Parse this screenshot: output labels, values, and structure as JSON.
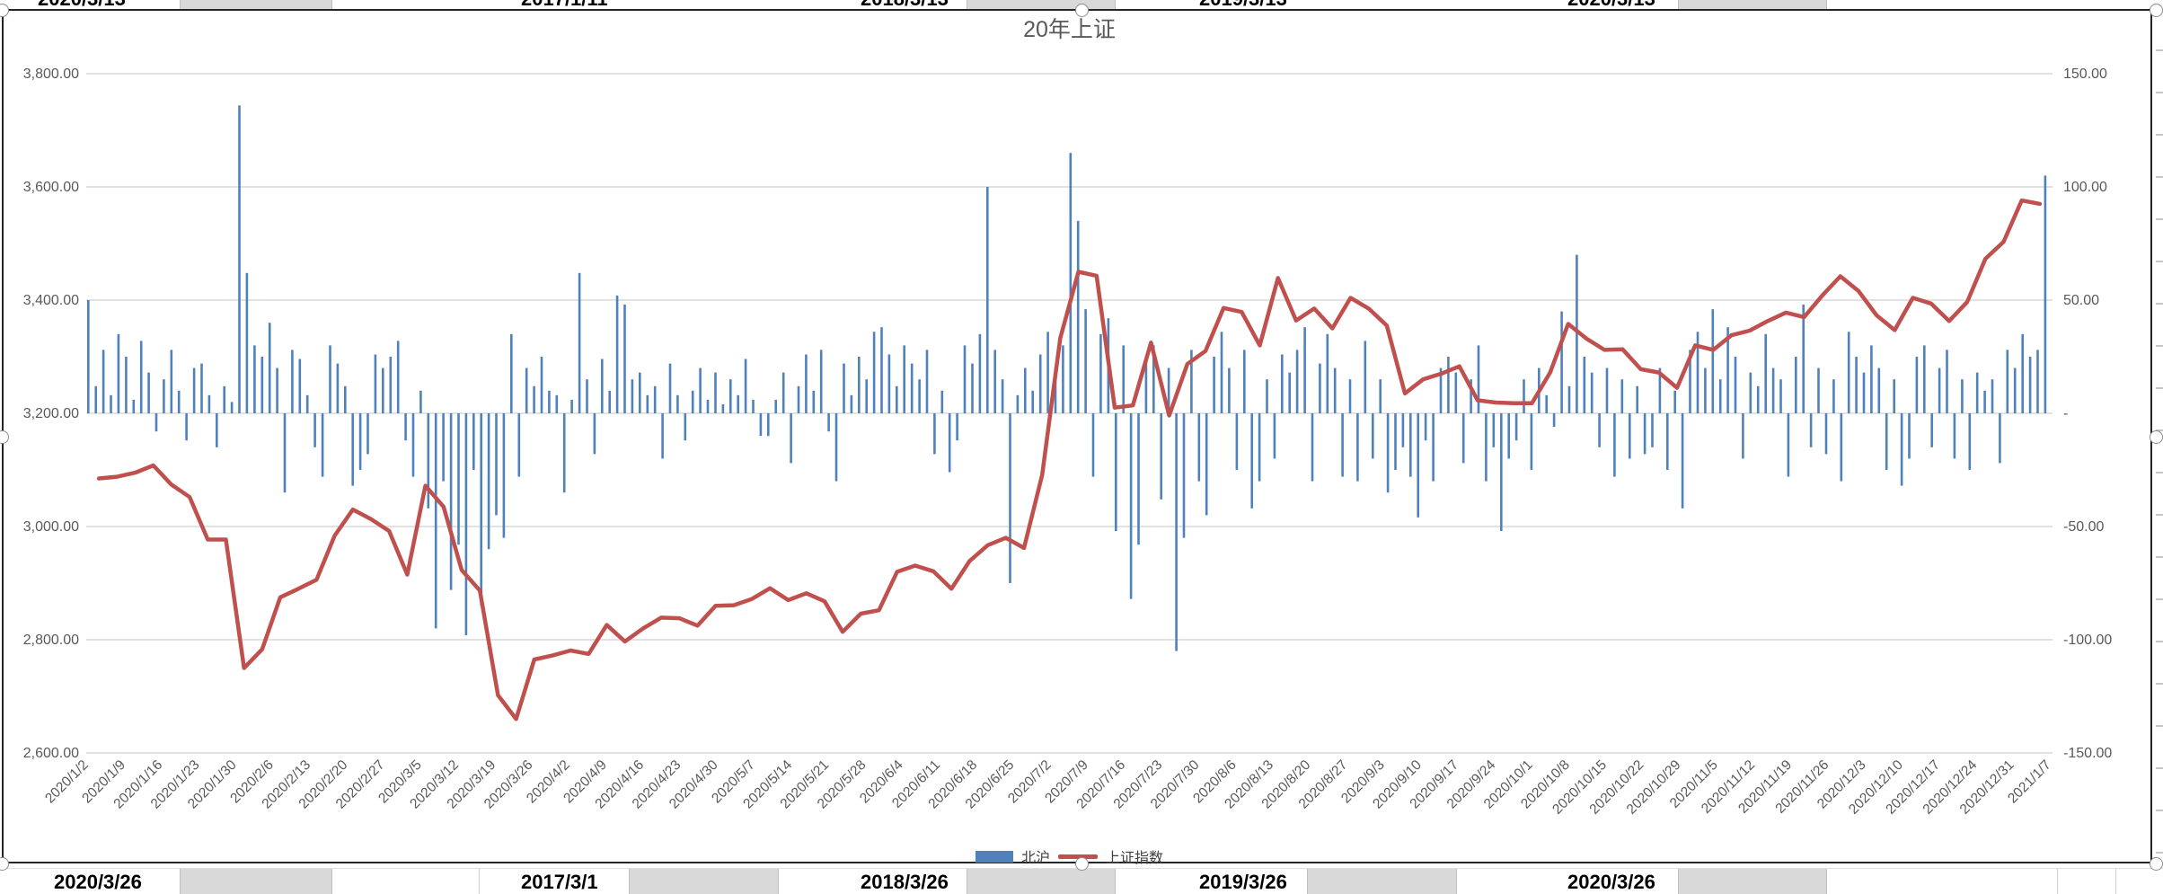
{
  "sheet": {
    "top_row": [
      "2020/3/13",
      "2017/1/11",
      "2018/3/13",
      "2019/3/13",
      "2020/3/13"
    ],
    "bottom_row": [
      "2020/3/26",
      "2017/3/1",
      "2018/3/26",
      "2019/3/26",
      "2020/3/26"
    ]
  },
  "chart_data": {
    "type": "combo-bar-line",
    "title": "20年上证",
    "legend_position": "bottom",
    "grid": true,
    "left_axis": {
      "labels": [
        "3,800.00",
        "3,600.00",
        "3,400.00",
        "3,200.00",
        "3,000.00",
        "2,800.00",
        "2,600.00"
      ],
      "min": 2600,
      "max": 3800,
      "step": 200
    },
    "right_axis": {
      "labels": [
        "150.00",
        "100.00",
        "50.00",
        "-",
        "-50.00",
        "-100.00",
        "-150.00"
      ],
      "min": -150,
      "max": 150,
      "step": 50
    },
    "categories": [
      "2020/1/2",
      "2020/1/9",
      "2020/1/16",
      "2020/1/23",
      "2020/1/30",
      "2020/2/6",
      "2020/2/13",
      "2020/2/20",
      "2020/2/27",
      "2020/3/5",
      "2020/3/12",
      "2020/3/19",
      "2020/3/26",
      "2020/4/2",
      "2020/4/9",
      "2020/4/16",
      "2020/4/23",
      "2020/4/30",
      "2020/5/7",
      "2020/5/14",
      "2020/5/21",
      "2020/5/28",
      "2020/6/4",
      "2020/6/11",
      "2020/6/18",
      "2020/6/25",
      "2020/7/2",
      "2020/7/9",
      "2020/7/16",
      "2020/7/23",
      "2020/7/30",
      "2020/8/6",
      "2020/8/13",
      "2020/8/20",
      "2020/8/27",
      "2020/9/3",
      "2020/9/10",
      "2020/9/17",
      "2020/9/24",
      "2020/10/1",
      "2020/10/8",
      "2020/10/15",
      "2020/10/22",
      "2020/10/29",
      "2020/11/5",
      "2020/11/12",
      "2020/11/19",
      "2020/11/26",
      "2020/12/3",
      "2020/12/10",
      "2020/12/17",
      "2020/12/24",
      "2020/12/31",
      "2021/1/7"
    ],
    "series": [
      {
        "name": "北沪",
        "type": "bar",
        "axis": "right",
        "color": "#4F81BD",
        "note": "daily values, right axis units",
        "values": [
          50,
          12,
          28,
          8,
          35,
          25,
          6,
          32,
          18,
          -8,
          15,
          28,
          10,
          -12,
          20,
          22,
          8,
          -15,
          12,
          5,
          136,
          62,
          30,
          25,
          40,
          20,
          -35,
          28,
          24,
          8,
          -15,
          -28,
          30,
          22,
          12,
          -32,
          -25,
          -18,
          26,
          20,
          25,
          32,
          -12,
          -28,
          10,
          -42,
          -95,
          -30,
          -78,
          -58,
          -98,
          -25,
          -85,
          -60,
          -45,
          -55,
          35,
          -28,
          20,
          12,
          25,
          10,
          8,
          -35,
          6,
          62,
          15,
          -18,
          24,
          10,
          52,
          48,
          15,
          18,
          8,
          12,
          -20,
          22,
          8,
          -12,
          10,
          20,
          6,
          18,
          4,
          15,
          8,
          24,
          6,
          -10,
          -10,
          6,
          18,
          -22,
          12,
          26,
          10,
          28,
          -8,
          -30,
          22,
          8,
          25,
          15,
          36,
          38,
          26,
          12,
          30,
          22,
          15,
          28,
          -18,
          10,
          -26,
          -12,
          30,
          22,
          35,
          100,
          28,
          15,
          -75,
          8,
          20,
          10,
          26,
          36,
          20,
          30,
          115,
          85,
          46,
          -28,
          35,
          42,
          -52,
          30,
          -82,
          -58,
          25,
          30,
          -38,
          20,
          -105,
          -55,
          28,
          -30,
          -45,
          25,
          36,
          20,
          -25,
          28,
          -42,
          -30,
          15,
          -20,
          26,
          18,
          28,
          38,
          -30,
          22,
          35,
          20,
          -28,
          15,
          -30,
          32,
          -20,
          15,
          -35,
          -25,
          -15,
          -28,
          -46,
          -12,
          -30,
          20,
          25,
          18,
          -22,
          15,
          30,
          -30,
          -15,
          -52,
          -20,
          -12,
          15,
          -25,
          20,
          8,
          -6,
          45,
          12,
          70,
          25,
          18,
          -15,
          20,
          -28,
          15,
          -20,
          12,
          -18,
          -15,
          20,
          -25,
          10,
          -42,
          28,
          36,
          20,
          46,
          15,
          38,
          25,
          -20,
          18,
          12,
          35,
          20,
          15,
          -28,
          25,
          48,
          -15,
          20,
          -18,
          15,
          -30,
          36,
          25,
          18,
          30,
          20,
          -25,
          15,
          -32,
          -20,
          25,
          30,
          -15,
          20,
          28,
          -20,
          15,
          -25,
          18,
          10,
          15,
          -22,
          28,
          20,
          35,
          25,
          28,
          105
        ]
      },
      {
        "name": "上证指数",
        "type": "line",
        "axis": "left",
        "color": "#C0504D",
        "points_per_category": 2,
        "values": [
          3085,
          3088,
          3095,
          3108,
          3074,
          3052,
          2977,
          2977,
          2750,
          2783,
          2875,
          2890,
          2906,
          2984,
          3030,
          3013,
          2992,
          2915,
          3072,
          3035,
          2923,
          2887,
          2702,
          2660,
          2765,
          2772,
          2781,
          2775,
          2826,
          2797,
          2820,
          2839,
          2838,
          2825,
          2860,
          2861,
          2872,
          2891,
          2870,
          2882,
          2868,
          2814,
          2846,
          2852,
          2920,
          2931,
          2921,
          2890,
          2939,
          2967,
          2980,
          2962,
          3091,
          3333,
          3450,
          3443,
          3210,
          3214,
          3325,
          3196,
          3287,
          3310,
          3386,
          3379,
          3320,
          3439,
          3364,
          3385,
          3350,
          3404,
          3385,
          3355,
          3235,
          3260,
          3270,
          3283,
          3223,
          3219,
          3218,
          3218,
          3272,
          3358,
          3332,
          3312,
          3313,
          3278,
          3272,
          3245,
          3320,
          3312,
          3338,
          3346,
          3363,
          3378,
          3370,
          3408,
          3442,
          3416,
          3373,
          3347,
          3404,
          3394,
          3363,
          3397,
          3473,
          3503,
          3576,
          3570
        ]
      }
    ],
    "colors": {
      "bar": "#4F81BD",
      "line": "#C0504D",
      "gridline": "#D9D9D9",
      "axis_text": "#595959",
      "title_text": "#595959"
    }
  }
}
